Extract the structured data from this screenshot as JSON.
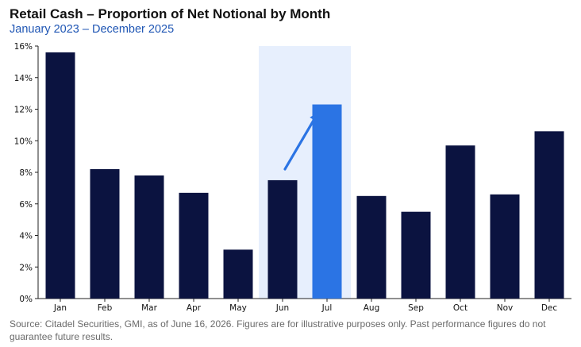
{
  "title": "Retail Cash – Proportion of Net Notional by Month",
  "subtitle": "January 2023 – December 2025",
  "footnote": "Source: Citadel Securities, GMI, as of June 16, 2026. Figures are for illustrative purposes only. Past performance figures do not guarantee future results.",
  "colors": {
    "bar": "#0b1340",
    "highlight_bar": "#2b74e4",
    "highlight_band": "#e7effd",
    "arrow": "#2b74e4"
  },
  "chart_data": {
    "type": "bar",
    "title": "Retail Cash – Proportion of Net Notional by Month",
    "subtitle": "January 2023 – December 2025",
    "xlabel": "",
    "ylabel": "",
    "categories": [
      "Jan",
      "Feb",
      "Mar",
      "Apr",
      "May",
      "Jun",
      "Jul",
      "Aug",
      "Sep",
      "Oct",
      "Nov",
      "Dec"
    ],
    "values": [
      15.6,
      8.2,
      7.8,
      6.7,
      3.1,
      7.5,
      12.3,
      6.5,
      5.5,
      9.7,
      6.6,
      10.6
    ],
    "ylim": [
      0,
      16
    ],
    "yticks": [
      0,
      2,
      4,
      6,
      8,
      10,
      12,
      14,
      16
    ],
    "ytick_labels": [
      "0%",
      "2%",
      "4%",
      "6%",
      "8%",
      "10%",
      "12%",
      "14%",
      "16%"
    ],
    "grid": false,
    "highlighted_bar": "Jul",
    "shaded_categories": [
      "Jun",
      "Jul"
    ],
    "annotation": {
      "type": "arrow",
      "from_category": "Jun",
      "to_category": "Jul",
      "from_value": 8.2,
      "to_value": 11.8
    }
  }
}
